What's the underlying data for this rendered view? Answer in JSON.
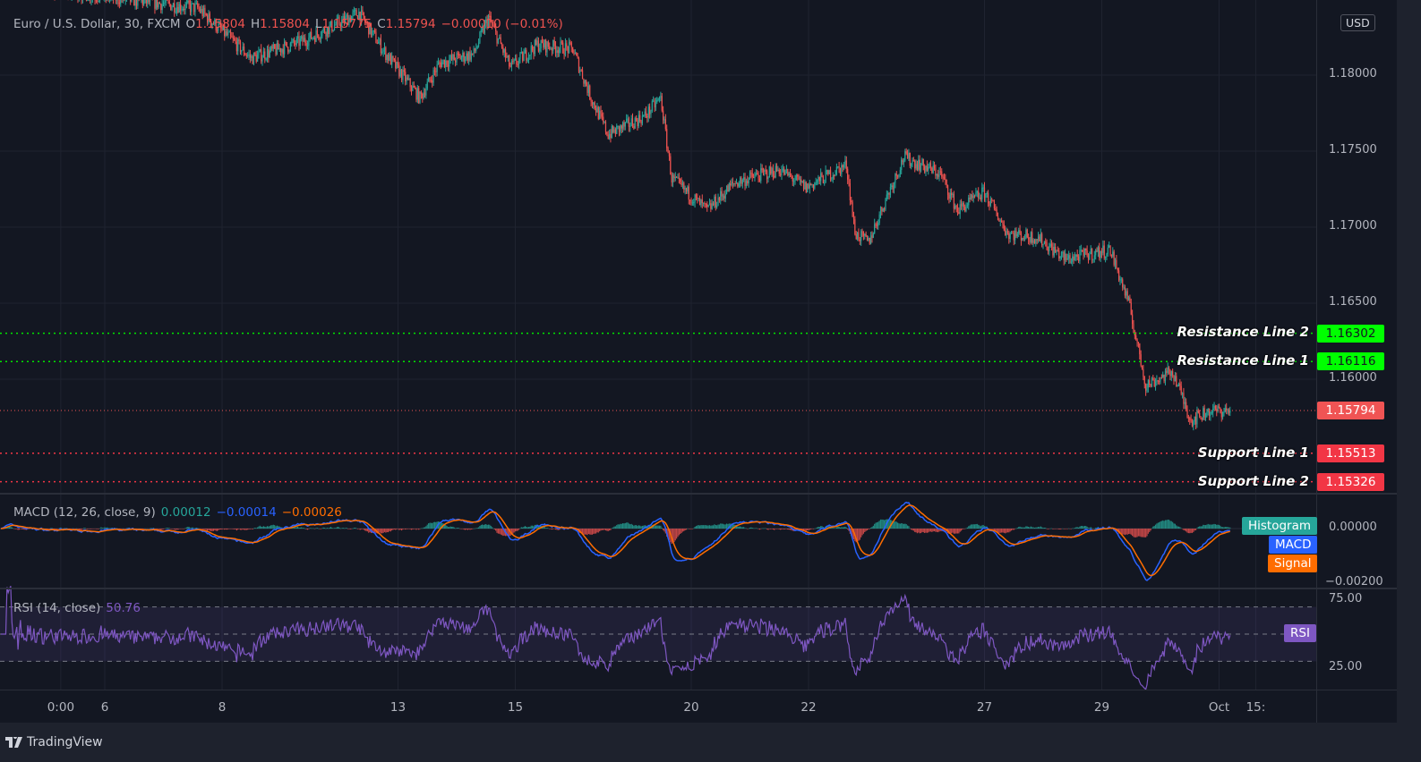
{
  "header": {
    "symbol": "Euro / U.S. Dollar, 30, FXCM",
    "open_label": "O",
    "open": "1.15804",
    "high_label": "H",
    "high": "1.15804",
    "low_label": "L",
    "low": "1.15775",
    "close_label": "C",
    "close": "1.15794",
    "change": "−0.00010 (−0.01%)"
  },
  "currency": "USD",
  "branding": "TradingView",
  "colors": {
    "background": "#131722",
    "up": "#26a69a",
    "down": "#ef5350",
    "resistance": "#00ff00",
    "support": "#f23645",
    "last_price": "#f05454",
    "macd": "#2962ff",
    "signal": "#ff6d00",
    "histogram": "#26a69a",
    "rsi": "#7e57c2"
  },
  "chart_data": {
    "type": "candlestick",
    "timeframe": "30",
    "price_axis": {
      "ticks": [
        "1.18000",
        "1.17500",
        "1.17000",
        "1.16500",
        "1.16000"
      ],
      "range": [
        1.1525,
        1.1865
      ]
    },
    "time_axis": {
      "ticks": [
        {
          "label": "0:00",
          "time": "09-03 06:00"
        },
        {
          "label": "6",
          "time": "09-06 00:00"
        },
        {
          "label": "8",
          "time": "09-08 00:00"
        },
        {
          "label": "13",
          "time": "09-13 00:00"
        },
        {
          "label": "15",
          "time": "09-15 00:00"
        },
        {
          "label": "20",
          "time": "09-20 00:00"
        },
        {
          "label": "22",
          "time": "09-22 00:00"
        },
        {
          "label": "27",
          "time": "09-27 00:00"
        },
        {
          "label": "29",
          "time": "09-29 00:00"
        },
        {
          "label": "Oct",
          "time": "10-01 00:00"
        },
        {
          "label": "15:",
          "time": "10-01 15:00"
        }
      ]
    },
    "close_path": [
      [
        "09-02 05:00",
        1.186
      ],
      [
        "09-07 14:00",
        1.1844
      ],
      [
        "09-08 12:00",
        1.1811
      ],
      [
        "09-09 10:00",
        1.1823
      ],
      [
        "09-10 08:00",
        1.1841
      ],
      [
        "09-10 19:00",
        1.1814
      ],
      [
        "09-13 09:00",
        1.1785
      ],
      [
        "09-13 17:00",
        1.1808
      ],
      [
        "09-14 07:00",
        1.1814
      ],
      [
        "09-14 13:00",
        1.1838
      ],
      [
        "09-14 22:00",
        1.1805
      ],
      [
        "09-15 09:00",
        1.182
      ],
      [
        "09-15 23:30",
        1.1817
      ],
      [
        "09-16 07:00",
        1.1785
      ],
      [
        "09-16 14:00",
        1.1761
      ],
      [
        "09-17 05:00",
        1.1773
      ],
      [
        "09-17 11:30",
        1.1785
      ],
      [
        "09-17 16:00",
        1.1732
      ],
      [
        "09-20 06:30",
        1.1711
      ],
      [
        "09-20 17:30",
        1.1729
      ],
      [
        "09-21 12:00",
        1.1738
      ],
      [
        "09-21 23:00",
        1.1726
      ],
      [
        "09-22 15:30",
        1.1741
      ],
      [
        "09-22 19:00",
        1.1696
      ],
      [
        "09-23 00:30",
        1.169
      ],
      [
        "09-23 08:00",
        1.172
      ],
      [
        "09-23 15:00",
        1.1746
      ],
      [
        "09-24 06:00",
        1.1735
      ],
      [
        "09-24 13:00",
        1.1711
      ],
      [
        "09-27 00:00",
        1.1723
      ],
      [
        "09-27 09:30",
        1.1696
      ],
      [
        "09-27 22:00",
        1.1693
      ],
      [
        "09-28 09:00",
        1.1679
      ],
      [
        "09-29 03:30",
        1.1685
      ],
      [
        "09-29 11:00",
        1.165
      ],
      [
        "09-29 18:00",
        1.1596
      ],
      [
        "09-30 05:00",
        1.1605
      ],
      [
        "09-30 12:30",
        1.1573
      ],
      [
        "09-30 19:30",
        1.1579
      ],
      [
        "10-01 04:30",
        1.15794
      ]
    ],
    "last_price": {
      "value": 1.15794,
      "label": "1.15794"
    },
    "horizontal_lines": [
      {
        "name": "Resistance Line 2",
        "value": 1.16302,
        "label": "1.16302",
        "kind": "resistance"
      },
      {
        "name": "Resistance Line 1",
        "value": 1.16116,
        "label": "1.16116",
        "kind": "resistance"
      },
      {
        "name": "Support Line 1",
        "value": 1.15513,
        "label": "1.15513",
        "kind": "support"
      },
      {
        "name": "Support Line 2",
        "value": 1.15326,
        "label": "1.15326",
        "kind": "support"
      }
    ],
    "macd": {
      "title": "MACD (12, 26, close, 9)",
      "histogram": "0.00012",
      "macd": "−0.00014",
      "signal": "−0.00026",
      "axis_ticks": [
        "0.00000",
        "−0.00200"
      ],
      "tags": {
        "histogram": "Histogram",
        "macd": "MACD",
        "signal": "Signal"
      }
    },
    "rsi": {
      "title": "RSI (14, close)",
      "value": "50.76",
      "axis_ticks": [
        "75.00",
        "25.00"
      ],
      "bands": [
        70,
        50,
        30
      ],
      "tag": "RSI"
    }
  }
}
